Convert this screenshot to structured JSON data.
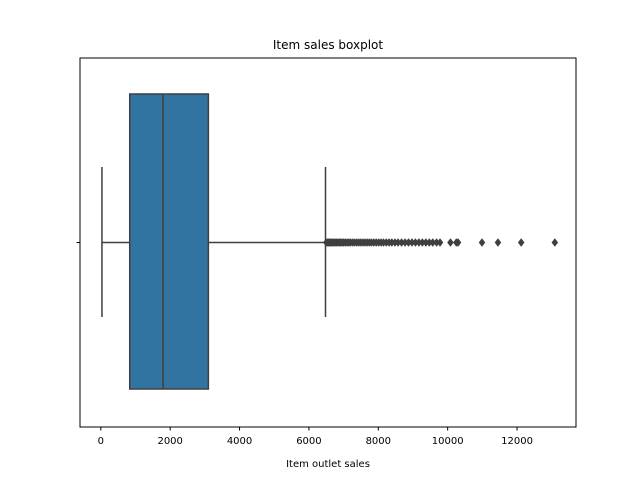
{
  "chart_data": {
    "type": "boxplot",
    "title": "Item sales boxplot",
    "xlabel": "Item outlet sales",
    "ylabel": "",
    "orientation": "horizontal",
    "xlim": [
      -600,
      13700
    ],
    "x_ticks": [
      0,
      2000,
      4000,
      6000,
      8000,
      10000,
      12000
    ],
    "x_tick_labels": [
      "0",
      "2000",
      "4000",
      "6000",
      "8000",
      "10000",
      "12000"
    ],
    "grid": false,
    "legend": "none",
    "box": {
      "whisker_low": 33,
      "q1": 834,
      "median": 1794,
      "q3": 3101,
      "whisker_high": 6478,
      "fill_color": "#3274a1",
      "line_color": "#3f3f3f"
    },
    "outliers": [
      6500,
      6530,
      6560,
      6590,
      6620,
      6650,
      6690,
      6720,
      6760,
      6800,
      6840,
      6880,
      6920,
      6960,
      7000,
      7050,
      7100,
      7150,
      7200,
      7260,
      7320,
      7380,
      7440,
      7500,
      7560,
      7620,
      7680,
      7740,
      7800,
      7870,
      7940,
      8010,
      8080,
      8150,
      8230,
      8310,
      8390,
      8480,
      8570,
      8670,
      8770,
      8870,
      8970,
      9070,
      9170,
      9270,
      9370,
      9470,
      9570,
      9680,
      9780,
      10080,
      10250,
      10300,
      10990,
      11450,
      12120,
      13090
    ]
  }
}
